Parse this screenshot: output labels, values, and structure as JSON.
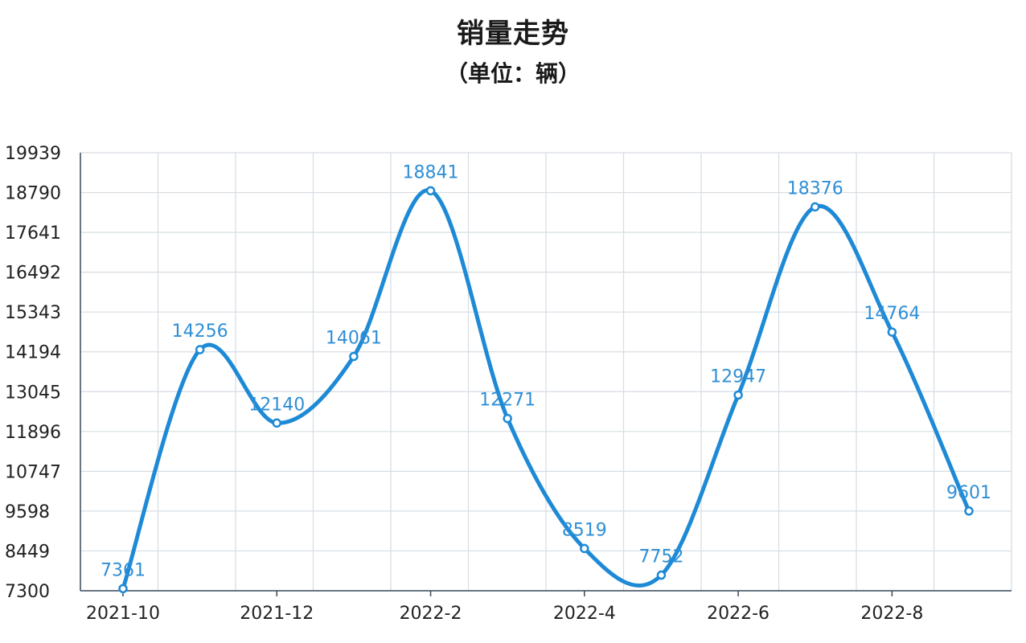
{
  "chart_data": {
    "type": "line",
    "title": "销量走势",
    "subtitle": "（单位：辆）",
    "x": [
      "2021-10",
      "2021-11",
      "2021-12",
      "2022-1",
      "2022-2",
      "2022-3",
      "2022-4",
      "2022-5",
      "2022-6",
      "2022-7",
      "2022-8",
      "2022-9"
    ],
    "x_tick_labels": [
      "2021-10",
      "2021-12",
      "2022-2",
      "2022-4",
      "2022-6",
      "2022-8"
    ],
    "series": [
      {
        "values": [
          7361,
          14256,
          12140,
          14061,
          18841,
          12271,
          8519,
          7752,
          12947,
          18376,
          14764,
          9601
        ],
        "color": "#1e8ad6",
        "smooth": true
      }
    ],
    "data_labels": [
      "7361",
      "14256",
      "12140",
      "14061",
      "18841",
      "12271",
      "8519",
      "7752",
      "12947",
      "18376",
      "14764",
      "9601"
    ],
    "y_ticks": [
      "7300",
      "8449",
      "9598",
      "10747",
      "11896",
      "13045",
      "14194",
      "15343",
      "16492",
      "17641",
      "18790",
      "19939"
    ],
    "ylim": [
      7300,
      19939
    ],
    "grid": true,
    "legend": "none",
    "label_color": "#2f8fd6",
    "grid_color": "#d6dde4",
    "axis_color": "#3a4a5a"
  }
}
